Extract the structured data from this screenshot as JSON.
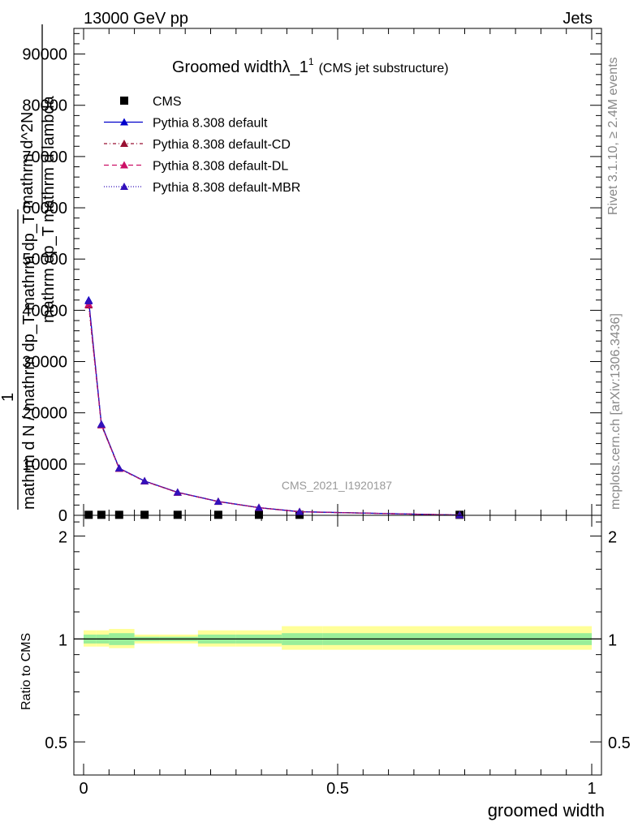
{
  "header": {
    "left": "13000 GeV pp",
    "right": "Jets"
  },
  "side_text": {
    "rivet": "Rivet 3.1.10, ≥ 2.4M events",
    "mcplots": "mcplots.cern.ch [arXiv:1306.3436]"
  },
  "watermark": "CMS_2021_I1920187",
  "chart_data": [
    {
      "type": "line",
      "title_main": "Groomed width",
      "title_lambda": "λ_1",
      "title_sup": "1",
      "title_small": "(CMS jet substructure)",
      "ylabel_lines": [
        "mathrm d^2N",
        "mathrm dp_T mathrm d lambda",
        "1",
        "mathrm d N / mathrm dp_T mathrm dp_T"
      ],
      "xlim": [
        0,
        1
      ],
      "ylim": [
        0,
        95000
      ],
      "y_ticks": [
        0,
        10000,
        20000,
        30000,
        40000,
        50000,
        60000,
        70000,
        80000,
        90000
      ],
      "y_tick_labels": [
        "0",
        "10000",
        "20000",
        "30000",
        "40000",
        "50000",
        "60000",
        "70000",
        "80000",
        "90000"
      ],
      "series": [
        {
          "name": "CMS",
          "marker": "square",
          "color": "#000000",
          "x": [
            0.01,
            0.035,
            0.07,
            0.12,
            0.185,
            0.265,
            0.345,
            0.425,
            0.74
          ],
          "y": [
            100,
            100,
            100,
            100,
            100,
            100,
            100,
            100,
            100
          ]
        },
        {
          "name": "Pythia 8.308 default",
          "marker": "triangle",
          "color": "#0000cc",
          "dash": "",
          "x": [
            0.01,
            0.035,
            0.07,
            0.12,
            0.185,
            0.265,
            0.345,
            0.425,
            0.74
          ],
          "y": [
            42000,
            17800,
            9200,
            6700,
            4500,
            2700,
            1500,
            700,
            50
          ]
        },
        {
          "name": "Pythia 8.308 default-CD",
          "marker": "triangle",
          "color": "#991133",
          "dash": "4,3,1,3",
          "x": [
            0.01,
            0.035,
            0.07,
            0.12,
            0.185,
            0.265,
            0.345,
            0.425,
            0.74
          ],
          "y": [
            41000,
            17600,
            9100,
            6650,
            4450,
            2680,
            1480,
            690,
            50
          ]
        },
        {
          "name": "Pythia 8.308 default-DL",
          "marker": "triangle",
          "color": "#cc1166",
          "dash": "6,4",
          "x": [
            0.01,
            0.035,
            0.07,
            0.12,
            0.185,
            0.265,
            0.345,
            0.425,
            0.74
          ],
          "y": [
            41200,
            17650,
            9120,
            6660,
            4460,
            2690,
            1490,
            695,
            50
          ]
        },
        {
          "name": "Pythia 8.308 default-MBR",
          "marker": "triangle",
          "color": "#3311bb",
          "dash": "1,2",
          "x": [
            0.01,
            0.035,
            0.07,
            0.12,
            0.185,
            0.265,
            0.345,
            0.425,
            0.74
          ],
          "y": [
            41800,
            17750,
            9180,
            6690,
            4490,
            2700,
            1500,
            700,
            50
          ]
        }
      ]
    },
    {
      "type": "line",
      "ylabel": "Ratio to CMS",
      "xlabel": "groomed width",
      "xlim": [
        0,
        1
      ],
      "ylim": [
        0.4,
        2.3
      ],
      "log_y": true,
      "y_ticks": [
        0.5,
        1,
        2
      ],
      "y_tick_labels": [
        "0.5",
        "1",
        "2"
      ],
      "x_ticks": [
        0,
        0.5,
        1
      ],
      "x_tick_labels": [
        "0",
        "0.5",
        "1"
      ],
      "bands": {
        "bin_edges": [
          0,
          0.025,
          0.05,
          0.1,
          0.15,
          0.225,
          0.3,
          0.39,
          0.47,
          1.0
        ],
        "yellow_lo": [
          0.95,
          0.95,
          0.94,
          0.97,
          0.97,
          0.95,
          0.95,
          0.93,
          0.93
        ],
        "yellow_hi": [
          1.06,
          1.06,
          1.07,
          1.03,
          1.03,
          1.06,
          1.06,
          1.09,
          1.09
        ],
        "green_lo": [
          0.97,
          0.97,
          0.96,
          0.985,
          0.985,
          0.97,
          0.97,
          0.96,
          0.96
        ],
        "green_hi": [
          1.03,
          1.03,
          1.04,
          1.015,
          1.015,
          1.03,
          1.03,
          1.04,
          1.04
        ]
      }
    }
  ]
}
